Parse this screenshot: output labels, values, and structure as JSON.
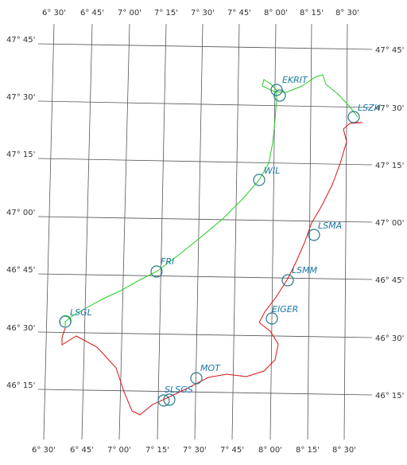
{
  "lon_labels_top": [
    "6° 30'",
    "6° 45'",
    "7° 00'",
    "7° 15'",
    "7° 30'",
    "7° 45'",
    "8° 00'",
    "8° 15'",
    "8° 30'"
  ],
  "lon_labels_bottom": [
    "6° 30'",
    "6° 45'",
    "7° 00'",
    "7° 15'",
    "7° 30'",
    "7° 45'",
    "8° 00'",
    "8° 15'",
    "8° 30'"
  ],
  "lat_labels_left": [
    "47° 45'",
    "47° 30'",
    "47° 15'",
    "47° 00'",
    "46° 45'",
    "46° 30'",
    "46° 15'"
  ],
  "lat_labels_right": [
    "47° 45'",
    "47° 30'",
    "47° 15'",
    "47° 00'",
    "46° 45'",
    "46° 30'",
    "46° 15'"
  ],
  "waypoints": [
    "EKRIT",
    "LSZH",
    "WIL",
    "FRI",
    "LSGL",
    "LSMA",
    "LSMM",
    "EIGER",
    "MOT",
    "SLSGS"
  ]
}
